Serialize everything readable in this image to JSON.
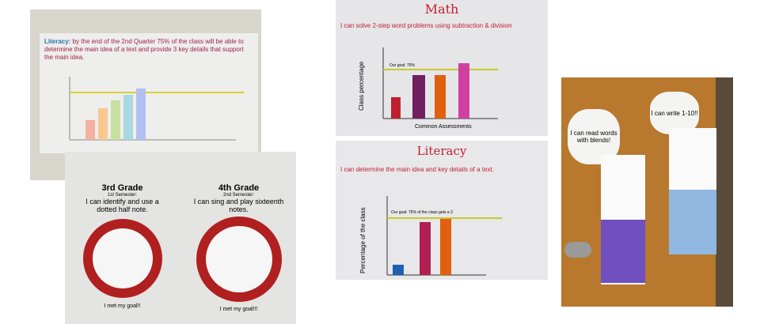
{
  "photos": [
    {
      "title": "Literacy:",
      "text": "by the end of the 2nd Quarter 75% of the class will be able to determine the main idea of a text and provide 3 key details that support the main idea."
    },
    {
      "posters": [
        {
          "title": "3rd Grade",
          "semester": "1st Semester:",
          "goal": "I can identify and use a dotted half note.",
          "footer": "I met my goal!!"
        },
        {
          "title": "4th Grade",
          "semester": "2nd Semester:",
          "goal": "I can sing and play sixteenth notes.",
          "footer": "I met my goal!!!"
        }
      ]
    },
    {
      "title": "Math",
      "goal": "I can solve 2-step word problems using subtraction & division",
      "y_label": "Class percentage",
      "x_label": "Common Assessments",
      "goal_line": "Our goal: 75%"
    },
    {
      "title": "Literacy",
      "goal": "I can determine the main idea and key details of a text.",
      "y_label": "Percentage of the class",
      "goal_line": "Our goal: 75% of the class gets a 3"
    },
    {
      "clouds": [
        "I can read words with blends!",
        "I can write 1-10!!"
      ]
    }
  ]
}
